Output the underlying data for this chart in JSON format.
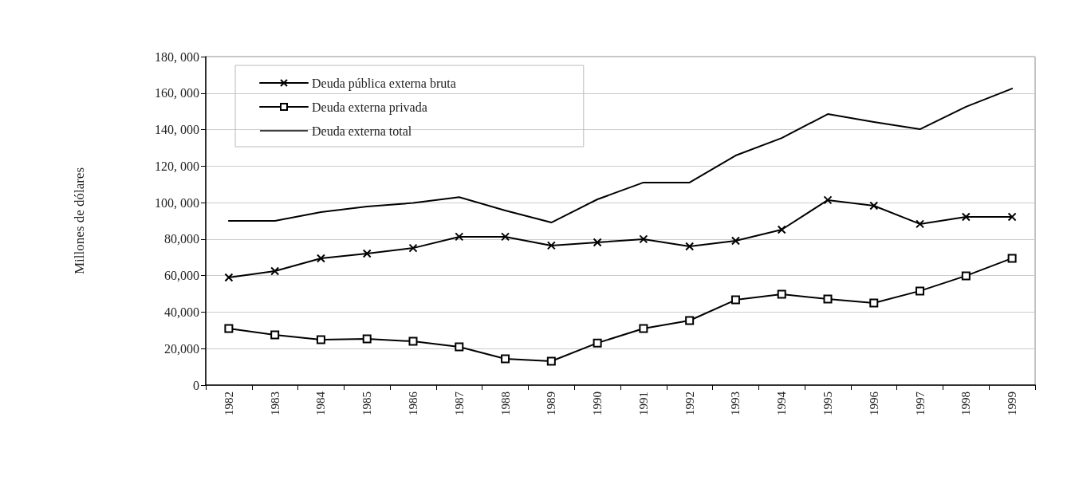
{
  "chart_data": {
    "type": "line",
    "ylabel": "Millones de dólares",
    "categories": [
      "1982",
      "1983",
      "1984",
      "1985",
      "1986",
      "1987",
      "1988",
      "1989",
      "1990",
      "1991",
      "1992",
      "1993",
      "1994",
      "1995",
      "1996",
      "1997",
      "1998",
      "1999"
    ],
    "series": [
      {
        "name": "Deuda pública externa bruta",
        "color": "#000000",
        "marker": "cross",
        "values": [
          59000,
          62500,
          69500,
          72100,
          75100,
          81300,
          81300,
          76500,
          78200,
          80000,
          76000,
          79100,
          85200,
          101400,
          98300,
          88300,
          92200,
          92200
        ]
      },
      {
        "name": "Deuda externa privada",
        "color": "#000000",
        "marker": "square",
        "values": [
          31000,
          27500,
          24900,
          25300,
          24000,
          21000,
          14400,
          13100,
          23100,
          31000,
          35400,
          46700,
          49800,
          47200,
          45000,
          51600,
          59900,
          69500
        ]
      },
      {
        "name": "Deuda externa total",
        "color": "#000000",
        "marker": "none",
        "values": [
          90000,
          90000,
          94800,
          97900,
          99800,
          103000,
          95700,
          89100,
          101800,
          111000,
          111000,
          125800,
          135400,
          148500,
          144200,
          140200,
          152500,
          162500
        ]
      }
    ],
    "ylim": [
      0,
      180000
    ],
    "yticks": [
      0,
      {
        "value": 20000,
        "label": "20,000"
      },
      {
        "value": 40000,
        "label": "40,000"
      },
      {
        "value": 60000,
        "label": "60,000"
      },
      {
        "value": 80000,
        "label": "80,000"
      },
      {
        "value": 100000,
        "label": "100, 000"
      },
      {
        "value": 120000,
        "label": "120, 000"
      },
      {
        "value": 140000,
        "label": "140, 000"
      },
      {
        "value": 160000,
        "label": "160, 000"
      },
      {
        "value": 180000,
        "label": "180, 000"
      }
    ],
    "grid": "y",
    "legend": "top left",
    "line_style": "solid"
  }
}
